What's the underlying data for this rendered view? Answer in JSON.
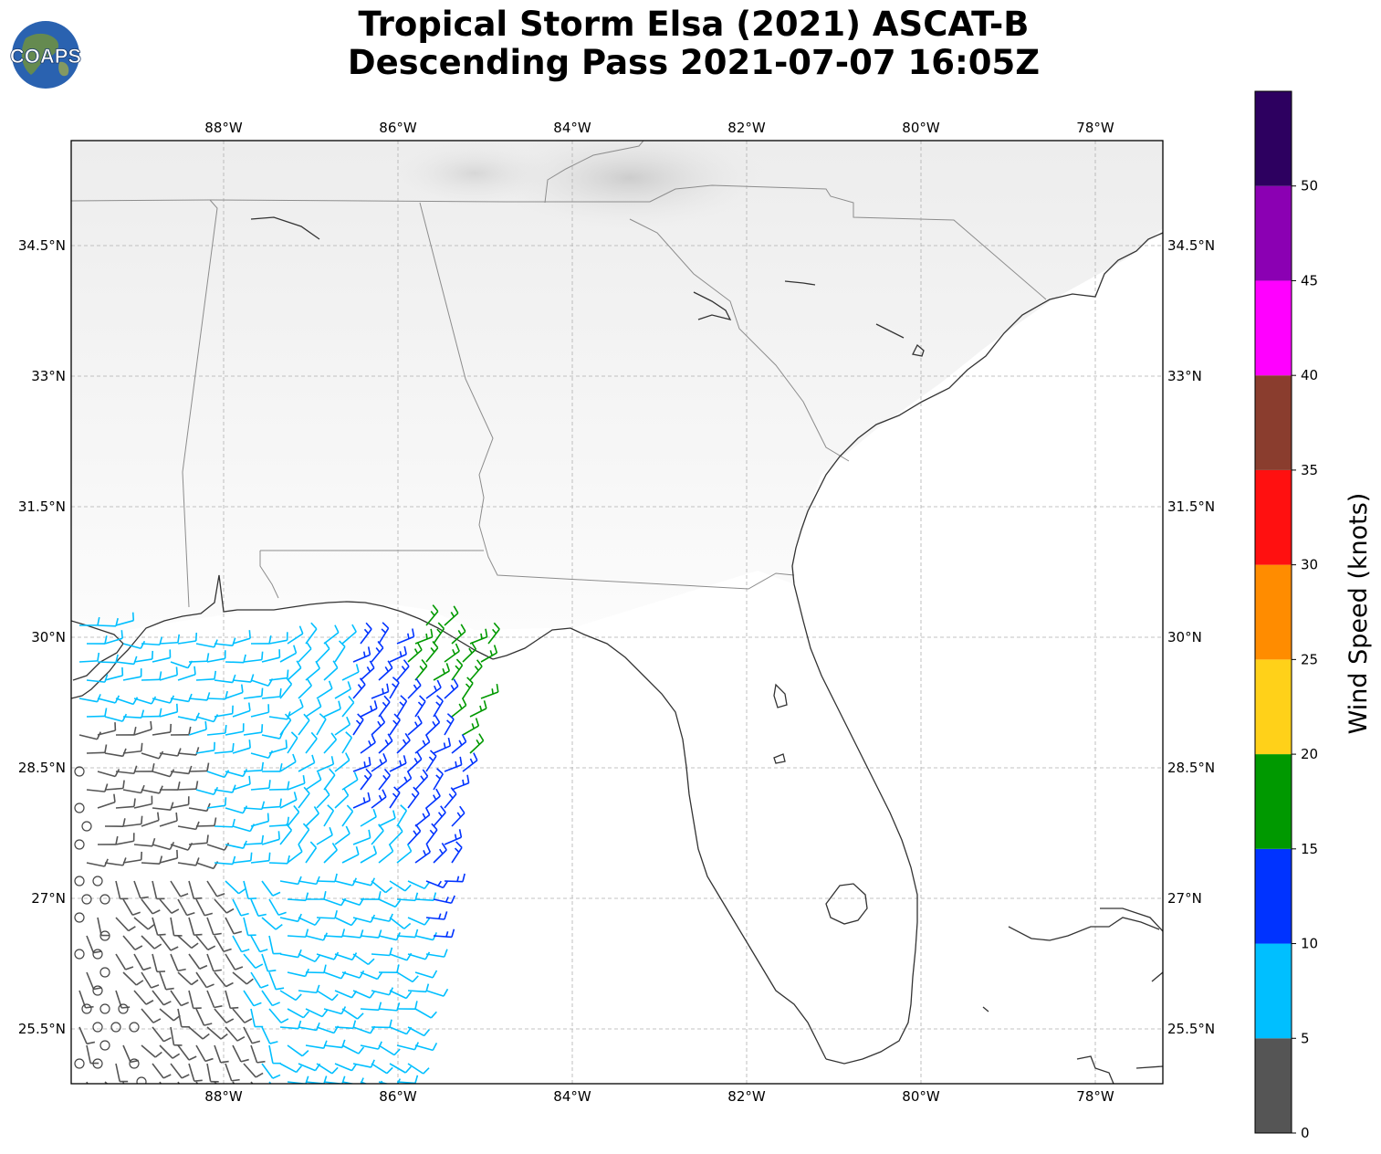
{
  "header": {
    "title_line1": "Tropical Storm Elsa (2021) ASCAT-B",
    "title_line2": "Descending Pass 2021-07-07 16:05Z",
    "logo_text": "COAPS"
  },
  "map": {
    "lon_range": [
      -89.75,
      -77.25
    ],
    "lat_range": [
      24.9,
      35.7
    ],
    "lon_ticks": [
      "88°W",
      "86°W",
      "84°W",
      "82°W",
      "80°W",
      "78°W"
    ],
    "lat_ticks": [
      "34.5°N",
      "33°N",
      "31.5°N",
      "30°N",
      "28.5°N",
      "27°N",
      "25.5°N"
    ],
    "grid": true,
    "land_color": "#ffffff",
    "coast_color": "#333333",
    "border_color": "#888888"
  },
  "colorbar": {
    "label": "Wind Speed (knots)",
    "ticks": [
      "0",
      "5",
      "10",
      "15",
      "20",
      "25",
      "30",
      "35",
      "40",
      "45",
      "50"
    ],
    "bins": [
      {
        "from": 0,
        "to": 5,
        "color": "#555555"
      },
      {
        "from": 5,
        "to": 10,
        "color": "#00bfff"
      },
      {
        "from": 10,
        "to": 15,
        "color": "#0033ff"
      },
      {
        "from": 15,
        "to": 20,
        "color": "#009900"
      },
      {
        "from": 20,
        "to": 25,
        "color": "#ffd119"
      },
      {
        "from": 25,
        "to": 30,
        "color": "#ff8c00"
      },
      {
        "from": 30,
        "to": 35,
        "color": "#ff1010"
      },
      {
        "from": 35,
        "to": 40,
        "color": "#8a3d2e"
      },
      {
        "from": 40,
        "to": 45,
        "color": "#ff00ff"
      },
      {
        "from": 45,
        "to": 50,
        "color": "#8b00b3"
      },
      {
        "from": 50,
        "to": 55,
        "color": "#2d0060"
      }
    ]
  }
}
